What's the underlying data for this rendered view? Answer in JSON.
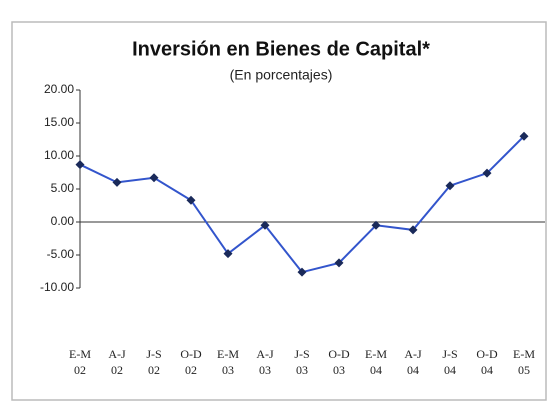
{
  "chart_data": {
    "type": "line",
    "title": "Inversión en Bienes de Capital*",
    "subtitle": "(En porcentajes)",
    "categories": [
      "E-M 02",
      "A-J 02",
      "J-S 02",
      "O-D 02",
      "E-M 03",
      "A-J 03",
      "J-S 03",
      "O-D 03",
      "E-M 04",
      "A-J 04",
      "J-S 04",
      "O-D 04",
      "E-M 05"
    ],
    "series": [
      {
        "name": "Inversión en Bienes de Capital",
        "color": "#3355cc",
        "marker_color": "#1a2a5a",
        "values": [
          8.7,
          6.0,
          6.7,
          3.3,
          -4.8,
          -0.5,
          -7.6,
          -6.2,
          -0.5,
          -1.2,
          5.5,
          7.4,
          13.0
        ]
      }
    ],
    "ylim": [
      -10,
      20
    ],
    "yticks": [
      {
        "value": -10,
        "label": "-10.00"
      },
      {
        "value": -5,
        "label": "-5.00"
      },
      {
        "value": 0,
        "label": "0.00"
      },
      {
        "value": 5,
        "label": "5.00"
      },
      {
        "value": 10,
        "label": "10.00"
      },
      {
        "value": 15,
        "label": "15.00"
      },
      {
        "value": 20,
        "label": "20.00"
      }
    ],
    "grid": false
  }
}
